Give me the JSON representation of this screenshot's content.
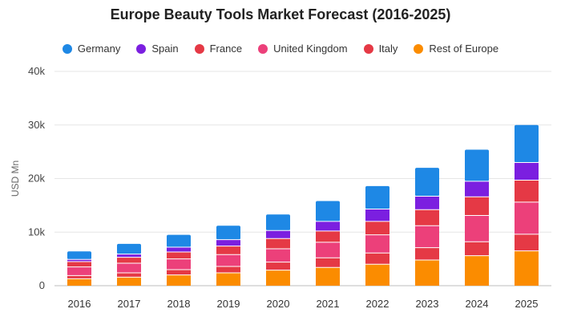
{
  "chart_data": {
    "type": "bar",
    "stacked": true,
    "title": "Europe Beauty Tools Market Forecast (2016-2025)",
    "xlabel": "",
    "ylabel": "USD Mn",
    "ylim": [
      0,
      40000
    ],
    "yticks": [
      0,
      10000,
      20000,
      30000,
      40000
    ],
    "ytick_labels": [
      "0",
      "10k",
      "20k",
      "30k",
      "40k"
    ],
    "grid": true,
    "legend_position": "top",
    "categories": [
      "2016",
      "2017",
      "2018",
      "2019",
      "2020",
      "2021",
      "2022",
      "2023",
      "2024",
      "2025"
    ],
    "series": [
      {
        "name": "Rest of Europe",
        "color": "#fb8c00",
        "values": [
          1300,
          1600,
          2000,
          2400,
          2900,
          3400,
          4000,
          4800,
          5600,
          6500
        ]
      },
      {
        "name": "Italy",
        "color": "#e53945",
        "values": [
          600,
          800,
          1000,
          1200,
          1500,
          1800,
          2100,
          2300,
          2600,
          3100
        ]
      },
      {
        "name": "United Kingdom",
        "color": "#ec407a",
        "values": [
          1600,
          1800,
          2000,
          2200,
          2500,
          2900,
          3400,
          4100,
          4900,
          6000
        ]
      },
      {
        "name": "France",
        "color": "#e53945",
        "values": [
          1000,
          1100,
          1300,
          1600,
          1900,
          2100,
          2500,
          3000,
          3500,
          4100
        ]
      },
      {
        "name": "Spain",
        "color": "#7b1fe0",
        "values": [
          400,
          600,
          900,
          1200,
          1500,
          1800,
          2300,
          2500,
          2900,
          3300
        ]
      },
      {
        "name": "Germany",
        "color": "#1e88e5",
        "values": [
          1500,
          1900,
          2300,
          2600,
          3000,
          3800,
          4300,
          5300,
          5900,
          7000
        ]
      }
    ],
    "legend_order": [
      "Germany",
      "Spain",
      "France",
      "United Kingdom",
      "Italy",
      "Rest of Europe"
    ]
  }
}
